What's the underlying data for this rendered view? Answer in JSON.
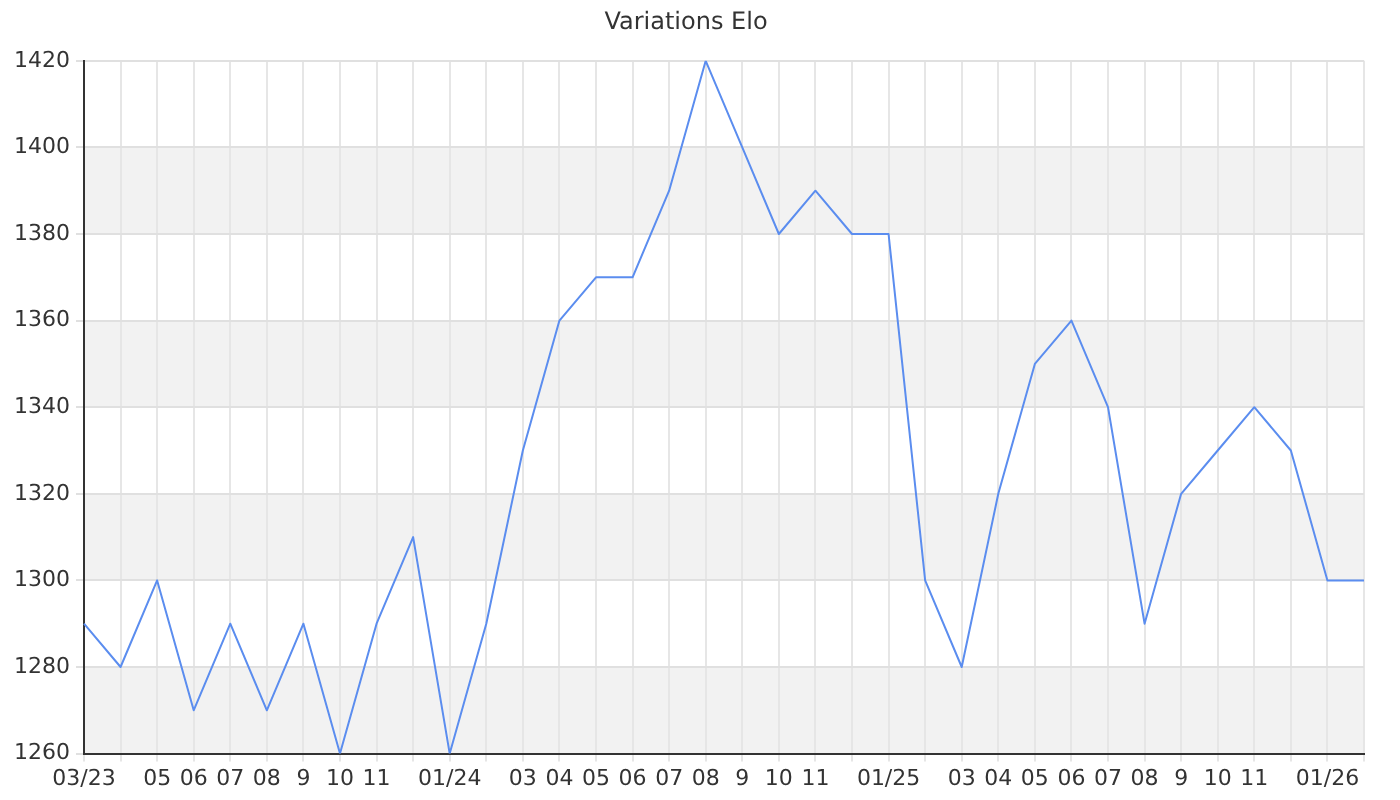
{
  "chart_data": {
    "type": "line",
    "title": "Variations Elo",
    "categories": [
      "03/23",
      null,
      "05",
      "06",
      "07",
      "08",
      "9",
      "10",
      "11",
      null,
      "01/24",
      null,
      "03",
      "04",
      "05",
      "06",
      "07",
      "08",
      "9",
      "10",
      "11",
      null,
      "01/25",
      null,
      "03",
      "04",
      "05",
      "06",
      "07",
      "08",
      "9",
      "10",
      "11",
      null,
      "01/26",
      null
    ],
    "series": [
      {
        "color": "#5b8def",
        "values": [
          1290,
          1280,
          1300,
          1270,
          1290,
          1270,
          1290,
          1260,
          1290,
          1310,
          1260,
          1290,
          1330,
          1360,
          1370,
          1370,
          1390,
          1420,
          1400,
          1380,
          1390,
          1380,
          1380,
          1300,
          1280,
          1320,
          1350,
          1360,
          1340,
          1290,
          1320,
          1330,
          1340,
          1330,
          1300,
          1300
        ]
      }
    ],
    "ylim": [
      1260,
      1420
    ],
    "yticks": [
      1260,
      1280,
      1300,
      1320,
      1340,
      1360,
      1380,
      1400,
      1420
    ],
    "grid": true,
    "legend": false,
    "marker": "none",
    "line_style": "solid"
  }
}
